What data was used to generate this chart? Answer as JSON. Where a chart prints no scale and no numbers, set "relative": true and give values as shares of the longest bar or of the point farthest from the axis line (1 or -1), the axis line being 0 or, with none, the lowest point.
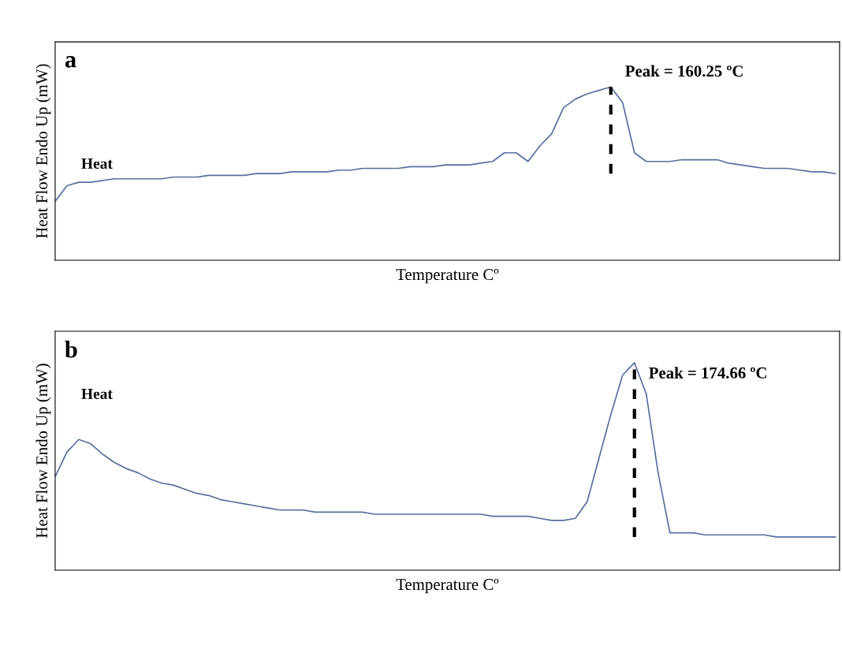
{
  "chart_data": [
    {
      "type": "line",
      "title": "a",
      "xlabel": "Temperature Cº",
      "ylabel": "Heat Flow Endo Up (mW)",
      "relative": true,
      "categories": [
        null,
        null,
        null,
        null,
        null,
        null,
        null,
        null,
        null,
        null,
        null,
        null,
        null,
        null,
        null,
        null,
        null,
        null,
        null,
        null,
        null,
        null,
        null,
        null,
        null,
        null,
        null,
        null,
        null,
        null,
        null,
        null,
        null,
        null,
        null,
        null,
        null,
        null,
        null,
        null,
        null,
        null,
        null,
        null,
        null,
        null,
        null,
        null,
        null,
        null,
        null,
        null,
        null,
        null,
        null,
        null,
        null,
        null,
        null,
        null,
        null,
        null,
        null,
        null,
        null,
        null,
        null
      ],
      "series": [
        {
          "color": "#5470a0",
          "values": [
            0.34,
            0.43,
            0.45,
            0.45,
            0.46,
            0.47,
            0.47,
            0.47,
            0.47,
            0.47,
            0.48,
            0.48,
            0.48,
            0.49,
            0.49,
            0.49,
            0.49,
            0.5,
            0.5,
            0.5,
            0.51,
            0.51,
            0.51,
            0.51,
            0.52,
            0.52,
            0.53,
            0.53,
            0.53,
            0.53,
            0.54,
            0.54,
            0.54,
            0.55,
            0.55,
            0.55,
            0.56,
            0.57,
            0.62,
            0.62,
            0.57,
            0.66,
            0.73,
            0.88,
            0.93,
            0.96,
            0.98,
            1.0,
            0.91,
            0.62,
            0.57,
            0.57,
            0.57,
            0.58,
            0.58,
            0.58,
            0.58,
            0.56,
            0.55,
            0.54,
            0.53,
            0.53,
            0.53,
            0.52,
            0.51,
            0.51,
            0.5
          ]
        }
      ],
      "annotations": [
        "Heat",
        "Peak = 160.25 ºC"
      ]
    },
    {
      "type": "line",
      "title": "b",
      "xlabel": "Temperature Cº",
      "ylabel": "Heat Flow Endo Up (mW)",
      "relative": true,
      "categories": [
        null,
        null,
        null,
        null,
        null,
        null,
        null,
        null,
        null,
        null,
        null,
        null,
        null,
        null,
        null,
        null,
        null,
        null,
        null,
        null,
        null,
        null,
        null,
        null,
        null,
        null,
        null,
        null,
        null,
        null,
        null,
        null,
        null,
        null,
        null,
        null,
        null,
        null,
        null,
        null,
        null,
        null,
        null,
        null,
        null,
        null,
        null,
        null,
        null,
        null,
        null,
        null,
        null,
        null,
        null,
        null,
        null,
        null,
        null,
        null,
        null,
        null,
        null,
        null,
        null,
        null,
        null
      ],
      "series": [
        {
          "color": "#5470a0",
          "values": [
            0.45,
            0.57,
            0.63,
            0.61,
            0.56,
            0.52,
            0.49,
            0.47,
            0.44,
            0.42,
            0.41,
            0.39,
            0.37,
            0.36,
            0.34,
            0.33,
            0.32,
            0.31,
            0.3,
            0.29,
            0.29,
            0.29,
            0.28,
            0.28,
            0.28,
            0.28,
            0.28,
            0.27,
            0.27,
            0.27,
            0.27,
            0.27,
            0.27,
            0.27,
            0.27,
            0.27,
            0.27,
            0.26,
            0.26,
            0.26,
            0.26,
            0.25,
            0.24,
            0.24,
            0.25,
            0.33,
            0.54,
            0.75,
            0.94,
            1.0,
            0.85,
            0.47,
            0.18,
            0.18,
            0.18,
            0.17,
            0.17,
            0.17,
            0.17,
            0.17,
            0.17,
            0.16,
            0.16,
            0.16,
            0.16,
            0.16,
            0.16
          ]
        }
      ],
      "annotations": [
        "Heat",
        "Peak = 174.66 ºC"
      ]
    }
  ]
}
